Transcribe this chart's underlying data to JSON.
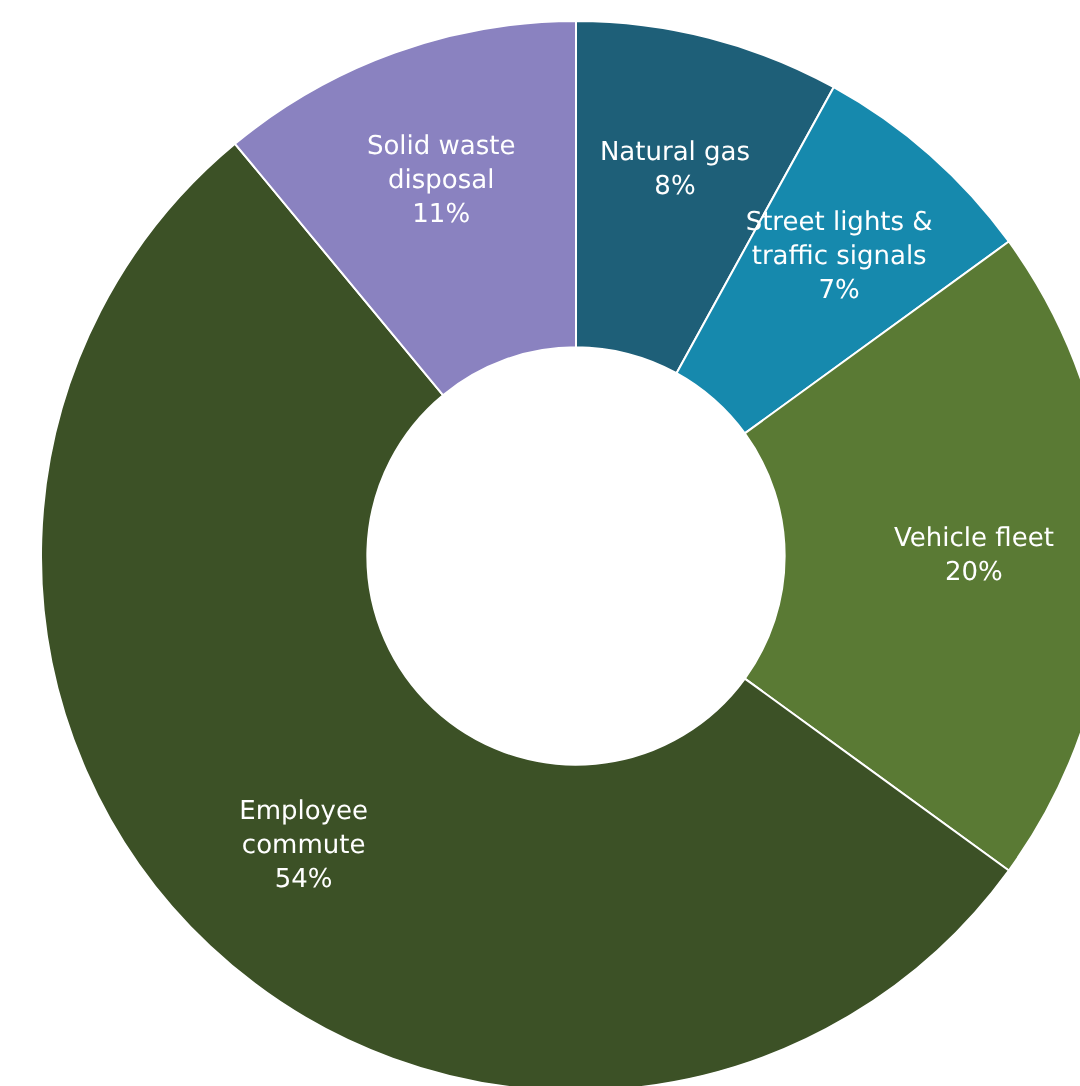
{
  "chart_data": {
    "type": "donut",
    "categories": [
      "Natural gas",
      "Street lights & traffic signals",
      "Vehicle fleet",
      "Employee commute",
      "Solid waste disposal"
    ],
    "values": [
      8,
      7,
      20,
      54,
      11
    ],
    "colors": [
      "#1e5f78",
      "#1689ad",
      "#5a7a34",
      "#3c5126",
      "#8a82c0"
    ],
    "value_labels": [
      "8%",
      "7%",
      "20%",
      "54%",
      "11%"
    ],
    "legend": false
  }
}
